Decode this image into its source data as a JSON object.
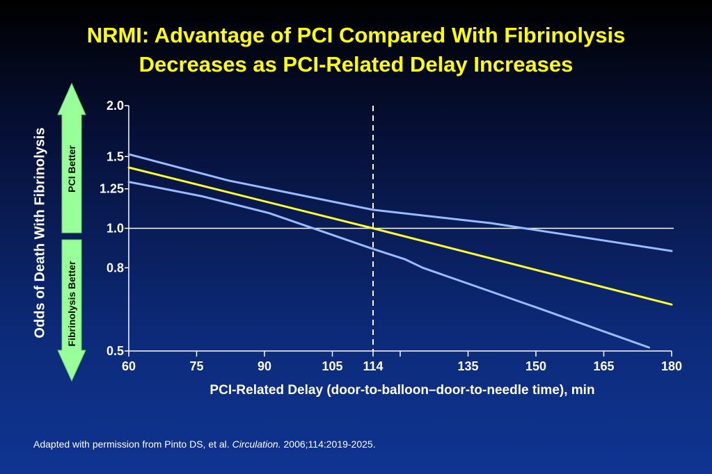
{
  "title": {
    "line1": "NRMI: Advantage of PCI Compared With Fibrinolysis",
    "line2": "Decreases as PCI-Related Delay Increases"
  },
  "footnote": {
    "prefix": "Adapted with permission from Pinto DS, et al. ",
    "journal": "Circulation.",
    "suffix": " 2006;114:2019-2025."
  },
  "arrows": {
    "up_label": "PCI Better",
    "down_label": "Fibrinolysis Better",
    "up_color": "#99ff99",
    "down_color": "#99ff99"
  },
  "chart_data": {
    "type": "line",
    "title": "NRMI: Advantage of PCI Compared With Fibrinolysis Decreases as PCI-Related Delay Increases",
    "xlabel": "PCI-Related Delay (door-to-balloon–door-to-needle time), min",
    "ylabel": "Odds of Death With Fibrinolysis",
    "xlim": [
      60,
      180
    ],
    "ylim": [
      0.5,
      2.0
    ],
    "y_scale": "log",
    "x_ticks": [
      60,
      75,
      90,
      105,
      114,
      135,
      150,
      165,
      180
    ],
    "x_tick_marks_unlabeled": [
      120
    ],
    "y_ticks": [
      {
        "value": 0.5,
        "label": "0.5"
      },
      {
        "value": 0.8,
        "label": "0.8"
      },
      {
        "value": 1.0,
        "label": "1.0"
      },
      {
        "value": 1.25,
        "label": "1.25"
      },
      {
        "value": 1.5,
        "label": "1.5"
      },
      {
        "value": 2.0,
        "label": "2.0"
      }
    ],
    "reference_lines": [
      {
        "axis": "y",
        "value": 1.0,
        "style": "solid",
        "color": "#ffffff"
      },
      {
        "axis": "x",
        "value": 114,
        "style": "dashed",
        "color": "#ffffff"
      }
    ],
    "series": [
      {
        "role": "estimate",
        "color": "#ffff33",
        "points": [
          [
            60,
            1.41
          ],
          [
            114,
            1.0
          ],
          [
            180,
            0.65
          ]
        ]
      },
      {
        "role": "upper-ci",
        "color": "#99bbff",
        "points": [
          [
            60,
            1.52
          ],
          [
            82,
            1.31
          ],
          [
            114,
            1.11
          ],
          [
            140,
            1.03
          ],
          [
            180,
            0.88
          ]
        ]
      },
      {
        "role": "lower-ci",
        "color": "#99bbff",
        "points": [
          [
            60,
            1.3
          ],
          [
            76,
            1.2
          ],
          [
            91,
            1.09
          ],
          [
            114,
            0.89
          ],
          [
            121,
            0.84
          ],
          [
            125,
            0.8
          ],
          [
            150,
            0.64
          ],
          [
            175,
            0.51
          ]
        ]
      }
    ],
    "grid": false
  }
}
